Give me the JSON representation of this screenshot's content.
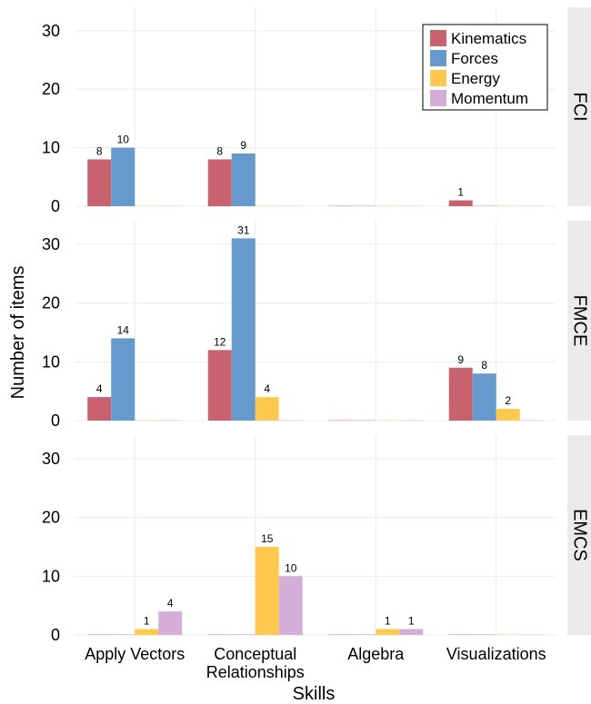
{
  "chart_data": {
    "type": "bar",
    "xlabel": "Skills",
    "ylabel": "Number of items",
    "ylim": [
      0,
      34
    ],
    "yticks": [
      0,
      10,
      20,
      30
    ],
    "categories": [
      "Apply Vectors",
      "Conceptual Relationships",
      "Algebra",
      "Visualizations"
    ],
    "series_names": [
      "Kinematics",
      "Forces",
      "Energy",
      "Momentum"
    ],
    "colors": {
      "Kinematics": "#c9626f",
      "Forces": "#6699cc",
      "Energy": "#ffc94f",
      "Momentum": "#d4aed8",
      "strip": "#ebebeb",
      "grid": "#ececec"
    },
    "legend_position": "top-right",
    "grid": true,
    "panels": [
      {
        "name": "FCI",
        "values": {
          "Kinematics": [
            8,
            8,
            0,
            1
          ],
          "Forces": [
            10,
            9,
            0,
            0
          ],
          "Energy": [
            0,
            0,
            0,
            0
          ],
          "Momentum": [
            0,
            0,
            0,
            0
          ]
        }
      },
      {
        "name": "FMCE",
        "values": {
          "Kinematics": [
            4,
            12,
            0,
            9
          ],
          "Forces": [
            14,
            31,
            0,
            8
          ],
          "Energy": [
            0,
            4,
            0,
            2
          ],
          "Momentum": [
            0,
            0,
            0,
            0
          ]
        }
      },
      {
        "name": "EMCS",
        "values": {
          "Kinematics": [
            0,
            0,
            0,
            0
          ],
          "Forces": [
            0,
            0,
            0,
            0
          ],
          "Energy": [
            1,
            15,
            1,
            0
          ],
          "Momentum": [
            4,
            10,
            1,
            0
          ]
        }
      }
    ]
  }
}
